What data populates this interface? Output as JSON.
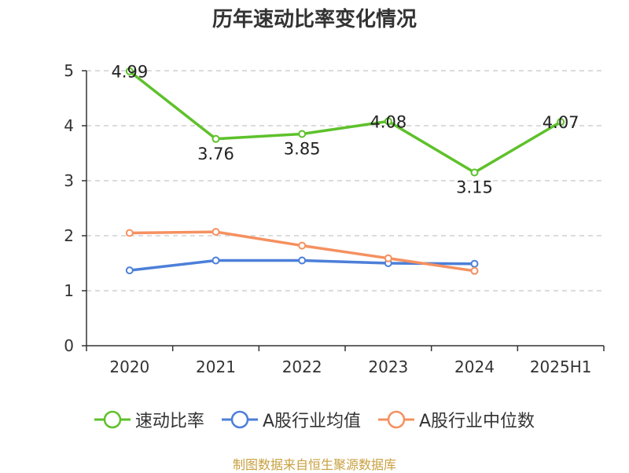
{
  "chart_data": {
    "type": "line",
    "title": "历年速动比率变化情况",
    "categories": [
      "2020",
      "2021",
      "2022",
      "2023",
      "2024",
      "2025H1"
    ],
    "ylim": [
      0,
      5
    ],
    "yticks": [
      0,
      1,
      2,
      3,
      4,
      5
    ],
    "grid": true,
    "legend_position": "bottom",
    "series": [
      {
        "name": "速动比率",
        "color": "#5ec12b",
        "values": [
          4.99,
          3.76,
          3.85,
          4.08,
          3.15,
          4.07
        ],
        "labels": [
          "4.99",
          "3.76",
          "3.85",
          "4.08",
          "3.15",
          "4.07"
        ],
        "show_labels": true
      },
      {
        "name": "A股行业均值",
        "color": "#4c7fd9",
        "values": [
          1.37,
          1.55,
          1.55,
          1.5,
          1.49,
          null
        ],
        "show_labels": false
      },
      {
        "name": "A股行业中位数",
        "color": "#f59060",
        "values": [
          2.05,
          2.07,
          1.82,
          1.59,
          1.36,
          null
        ],
        "show_labels": false
      }
    ]
  },
  "source_note": "制图数据来自恒生聚源数据库"
}
